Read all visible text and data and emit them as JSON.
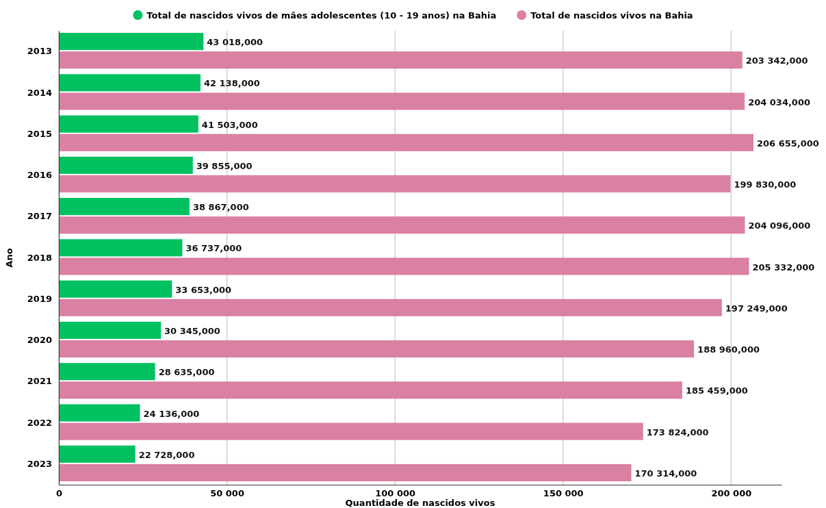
{
  "chart_data": {
    "type": "bar",
    "orientation": "horizontal",
    "xlabel": "Quantidade de nascidos vivos",
    "ylabel": "Ano",
    "categories": [
      "2013",
      "2014",
      "2015",
      "2016",
      "2017",
      "2018",
      "2019",
      "2020",
      "2021",
      "2022",
      "2023"
    ],
    "series": [
      {
        "name": "Total de nascidos vivos de mães adolescentes (10 - 19 anos) na Bahia",
        "color": "#00c060",
        "values": [
          43018,
          42138,
          41503,
          39855,
          38867,
          36737,
          33653,
          30345,
          28635,
          24136,
          22728
        ],
        "value_labels": [
          "43 018,000",
          "42 138,000",
          "41 503,000",
          "39 855,000",
          "38 867,000",
          "36 737,000",
          "33 653,000",
          "30 345,000",
          "28 635,000",
          "24 136,000",
          "22 728,000"
        ]
      },
      {
        "name": "Total de nascidos vivos na Bahia",
        "color": "#d980a3",
        "values": [
          203342,
          204034,
          206655,
          199830,
          204096,
          205332,
          197249,
          188960,
          185459,
          173824,
          170314
        ],
        "value_labels": [
          "203 342,000",
          "204 034,000",
          "206 655,000",
          "199 830,000",
          "204 096,000",
          "205 332,000",
          "197 249,000",
          "188 960,000",
          "185 459,000",
          "173 824,000",
          "170 314,000"
        ]
      }
    ],
    "xlim": [
      0,
      215000
    ],
    "xticks": [
      0,
      {
        "value": 50000,
        "label": "50 000"
      },
      {
        "value": 100000,
        "label": "100 000"
      },
      {
        "value": 150000,
        "label": "150 000"
      },
      {
        "value": 200000,
        "label": "200 000"
      }
    ],
    "grid": "x",
    "legend": "top"
  }
}
